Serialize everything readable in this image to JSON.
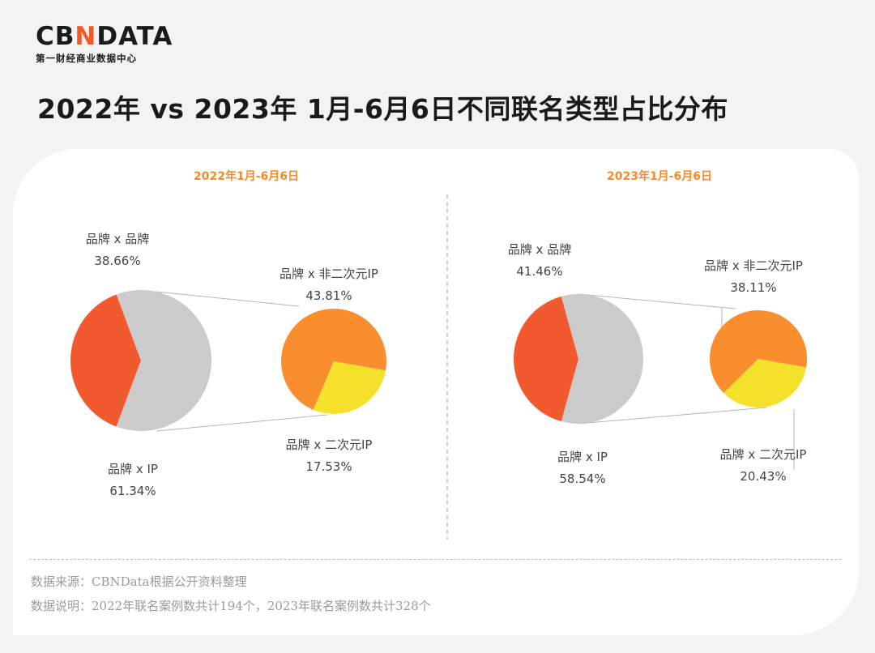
{
  "logo": {
    "part1": "CB",
    "part2": "N",
    "part3": "DATA",
    "subtitle": "第一财经商业数据中心"
  },
  "title": "2022年 vs 2023年 1月-6月6日不同联名类型占比分布",
  "colors": {
    "brand_brand": "#f15a2e",
    "brand_ip": "#cbcbcb",
    "brand_non_acg_ip": "#f98e2e",
    "brand_acg_ip": "#f5e02c",
    "divider": "#f0a090",
    "subtitle": "#f58a2e"
  },
  "chart_data": [
    {
      "type": "pie",
      "subtitle": "2022年1月-6月6日",
      "main_pie": {
        "slices": [
          {
            "name": "品牌 x 品牌",
            "value": 38.66,
            "value_label": "38.66%"
          },
          {
            "name": "品牌 x IP",
            "value": 61.34,
            "value_label": "61.34%"
          }
        ]
      },
      "sub_pie": {
        "parent": "品牌 x IP",
        "slices": [
          {
            "name": "品牌 x 非二次元IP",
            "value": 43.81,
            "value_label": "43.81%"
          },
          {
            "name": "品牌 x 二次元IP",
            "value": 17.53,
            "value_label": "17.53%"
          }
        ]
      }
    },
    {
      "type": "pie",
      "subtitle": "2023年1月-6月6日",
      "main_pie": {
        "slices": [
          {
            "name": "品牌 x 品牌",
            "value": 41.46,
            "value_label": "41.46%"
          },
          {
            "name": "品牌 x IP",
            "value": 58.54,
            "value_label": "58.54%"
          }
        ]
      },
      "sub_pie": {
        "parent": "品牌 x IP",
        "slices": [
          {
            "name": "品牌 x 非二次元IP",
            "value": 38.11,
            "value_label": "38.11%"
          },
          {
            "name": "品牌 x 二次元IP",
            "value": 20.43,
            "value_label": "20.43%"
          }
        ]
      }
    }
  ],
  "footer": {
    "source": "数据来源：CBNData根据公开资料整理",
    "note": "数据说明：2022年联名案例数共计194个，2023年联名案例数共计328个"
  }
}
